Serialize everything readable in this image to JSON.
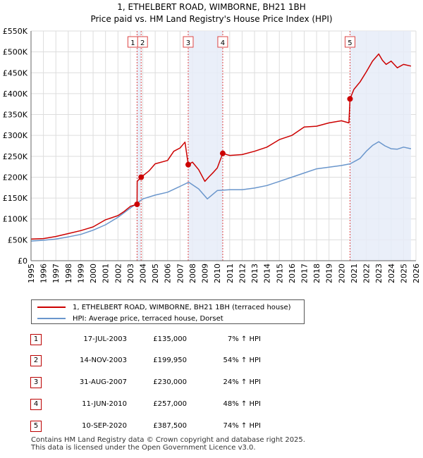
{
  "chart_data": {
    "type": "line",
    "title": "1, ETHELBERT ROAD, WIMBORNE, BH21 1BH",
    "subtitle": "Price paid vs. HM Land Registry's House Price Index (HPI)",
    "xlim": [
      1995,
      2026
    ],
    "ylim": [
      0,
      550000
    ],
    "x_ticks": [
      "1995",
      "1996",
      "1997",
      "1998",
      "1999",
      "2000",
      "2001",
      "2002",
      "2003",
      "2004",
      "2005",
      "2006",
      "2007",
      "2008",
      "2009",
      "2010",
      "2011",
      "2012",
      "2013",
      "2014",
      "2015",
      "2016",
      "2017",
      "2018",
      "2019",
      "2020",
      "2021",
      "2022",
      "2023",
      "2024",
      "2025",
      "2026"
    ],
    "y_ticks": [
      {
        "value": 0,
        "label": "£0"
      },
      {
        "value": 50000,
        "label": "£50K"
      },
      {
        "value": 100000,
        "label": "£100K"
      },
      {
        "value": 150000,
        "label": "£150K"
      },
      {
        "value": 200000,
        "label": "£200K"
      },
      {
        "value": 250000,
        "label": "£250K"
      },
      {
        "value": 300000,
        "label": "£300K"
      },
      {
        "value": 350000,
        "label": "£350K"
      },
      {
        "value": 400000,
        "label": "£400K"
      },
      {
        "value": 450000,
        "label": "£450K"
      },
      {
        "value": 500000,
        "label": "£500K"
      },
      {
        "value": 550000,
        "label": "£550K"
      }
    ],
    "series": [
      {
        "name": "1, ETHELBERT ROAD, WIMBORNE, BH21 1BH (terraced house)",
        "color": "#cc0000",
        "x": [
          1995.0,
          1996.0,
          1997.0,
          1998.0,
          1999.0,
          2000.0,
          2001.0,
          2002.0,
          2002.5,
          2003.0,
          2003.54,
          2003.55,
          2003.87,
          2004.5,
          2005.0,
          2006.0,
          2006.5,
          2007.0,
          2007.4,
          2007.66,
          2008.0,
          2008.5,
          2009.0,
          2009.3,
          2009.7,
          2010.0,
          2010.44,
          2011.0,
          2012.0,
          2013.0,
          2014.0,
          2015.0,
          2016.0,
          2017.0,
          2018.0,
          2019.0,
          2020.0,
          2020.6,
          2020.69,
          2021.0,
          2021.5,
          2022.0,
          2022.5,
          2023.0,
          2023.3,
          2023.6,
          2024.0,
          2024.5,
          2025.0,
          2025.6
        ],
        "y": [
          52000,
          53000,
          58000,
          65000,
          72000,
          81000,
          98000,
          108000,
          118000,
          130000,
          135000,
          190000,
          199950,
          215000,
          232000,
          240000,
          262000,
          270000,
          284000,
          230000,
          236000,
          218000,
          190000,
          200000,
          212000,
          222000,
          257000,
          252000,
          254000,
          262000,
          272000,
          290000,
          300000,
          320000,
          322000,
          330000,
          335000,
          330000,
          387500,
          410000,
          428000,
          452000,
          478000,
          495000,
          480000,
          470000,
          478000,
          462000,
          470000,
          466000
        ]
      },
      {
        "name": "HPI: Average price, terraced house, Dorset",
        "color": "#6a96cc",
        "x": [
          1995.0,
          1996.0,
          1997.0,
          1998.0,
          1999.0,
          2000.0,
          2001.0,
          2002.0,
          2003.0,
          2004.0,
          2005.0,
          2006.0,
          2007.0,
          2007.7,
          2008.5,
          2009.2,
          2010.0,
          2011.0,
          2012.0,
          2013.0,
          2014.0,
          2015.0,
          2016.0,
          2017.0,
          2018.0,
          2019.0,
          2020.0,
          2020.7,
          2021.5,
          2022.0,
          2022.5,
          2023.0,
          2023.5,
          2024.0,
          2024.5,
          2025.0,
          2025.6
        ],
        "y": [
          47000,
          49000,
          52000,
          57000,
          63000,
          73000,
          86000,
          104000,
          126000,
          148000,
          157000,
          164000,
          178000,
          188000,
          172000,
          148000,
          168000,
          170000,
          170000,
          174000,
          180000,
          190000,
          200000,
          210000,
          220000,
          224000,
          228000,
          232000,
          245000,
          262000,
          276000,
          285000,
          275000,
          268000,
          267000,
          272000,
          268000
        ]
      }
    ],
    "shaded_ranges": [
      [
        2003.54,
        2003.87
      ],
      [
        2007.66,
        2010.44
      ],
      [
        2020.69,
        2025.6
      ]
    ],
    "sales": [
      {
        "label": "1",
        "x": 2003.54,
        "y": 135000
      },
      {
        "label": "2",
        "x": 2003.87,
        "y": 199950
      },
      {
        "label": "3",
        "x": 2007.66,
        "y": 230000
      },
      {
        "label": "4",
        "x": 2010.44,
        "y": 257000
      },
      {
        "label": "5",
        "x": 2020.69,
        "y": 387500
      }
    ]
  },
  "legend": {
    "property_label": "1, ETHELBERT ROAD, WIMBORNE, BH21 1BH (terraced house)",
    "hpi_label": "HPI: Average price, terraced house, Dorset"
  },
  "sales_table": [
    {
      "num": "1",
      "date": "17-JUL-2003",
      "price": "£135,000",
      "hpi": "7% ↑ HPI"
    },
    {
      "num": "2",
      "date": "14-NOV-2003",
      "price": "£199,950",
      "hpi": "54% ↑ HPI"
    },
    {
      "num": "3",
      "date": "31-AUG-2007",
      "price": "£230,000",
      "hpi": "24% ↑ HPI"
    },
    {
      "num": "4",
      "date": "11-JUN-2010",
      "price": "£257,000",
      "hpi": "48% ↑ HPI"
    },
    {
      "num": "5",
      "date": "10-SEP-2020",
      "price": "£387,500",
      "hpi": "74% ↑ HPI"
    }
  ],
  "footer": {
    "line1": "Contains HM Land Registry data © Crown copyright and database right 2025.",
    "line2": "This data is licensed under the Open Government Licence v3.0."
  }
}
